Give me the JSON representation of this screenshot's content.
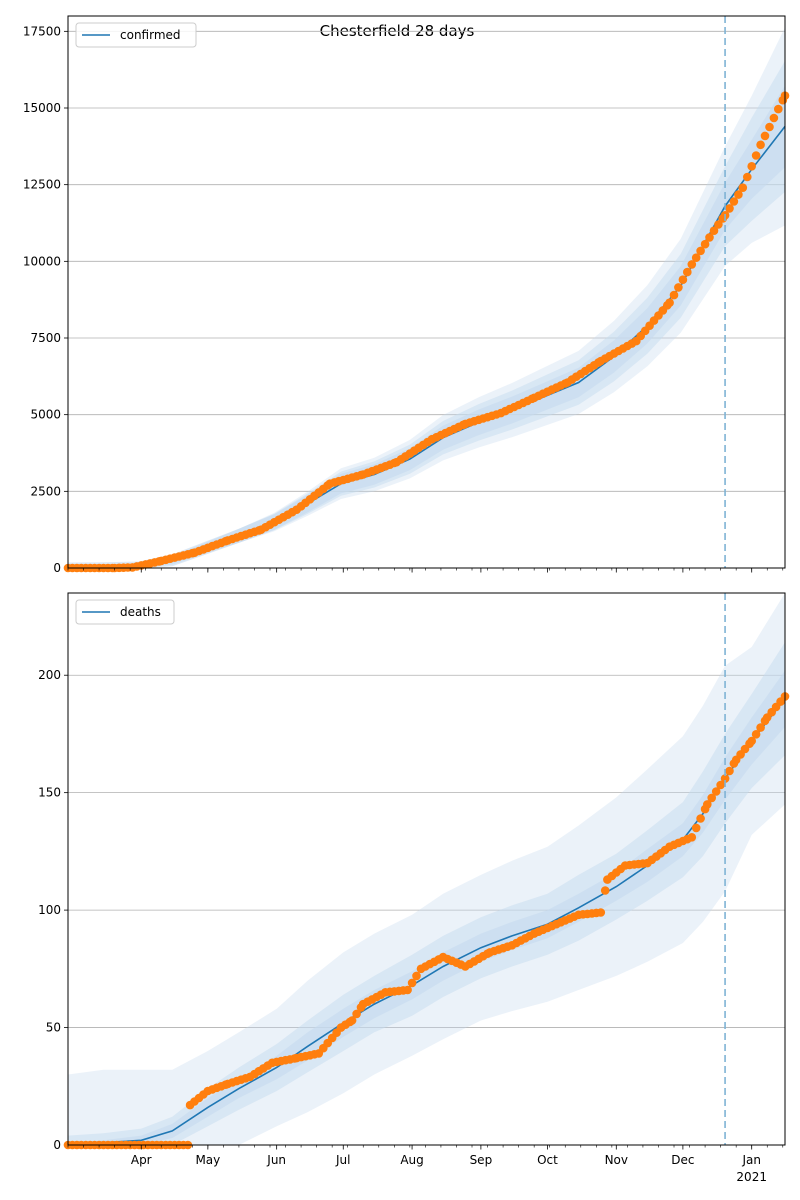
{
  "figure": {
    "title": "Chesterfield 28 days"
  },
  "chart_data": [
    {
      "type": "line",
      "panel": "top",
      "title": "Chesterfield 28 days",
      "legend": {
        "label": "confirmed",
        "placement": "top-left"
      },
      "xlim": [
        "2020-02-28",
        "2021-01-16"
      ],
      "ylim": [
        0,
        18000
      ],
      "yticks": [
        0,
        2500,
        5000,
        7500,
        10000,
        12500,
        15000,
        17500
      ],
      "grid": "y",
      "forecast_start": "2020-12-20",
      "model": {
        "color": "#1f77b4",
        "x": [
          "2020-02-28",
          "2020-03-15",
          "2020-03-31",
          "2020-04-15",
          "2020-04-30",
          "2020-05-15",
          "2020-05-31",
          "2020-06-15",
          "2020-06-30",
          "2020-07-15",
          "2020-07-31",
          "2020-08-15",
          "2020-08-31",
          "2020-09-15",
          "2020-09-30",
          "2020-10-15",
          "2020-10-31",
          "2020-11-15",
          "2020-11-30",
          "2020-12-10",
          "2020-12-20",
          "2021-01-01",
          "2021-01-16"
        ],
        "y": [
          0,
          5,
          30,
          250,
          650,
          1050,
          1500,
          2100,
          2750,
          3050,
          3550,
          4250,
          4750,
          5150,
          5600,
          6050,
          6900,
          7900,
          9200,
          10500,
          11800,
          13000,
          14400
        ],
        "band_inner": [
          0.05,
          0.05,
          0.05,
          0.05,
          0.05,
          0.05,
          0.05,
          0.05,
          0.05,
          0.05,
          0.05,
          0.05,
          0.05,
          0.05,
          0.05,
          0.05,
          0.05,
          0.05,
          0.05,
          0.05,
          0.05,
          0.06,
          0.08
        ],
        "band_mid": [
          0.1,
          0.1,
          0.1,
          0.1,
          0.1,
          0.1,
          0.1,
          0.1,
          0.1,
          0.1,
          0.1,
          0.1,
          0.1,
          0.1,
          0.1,
          0.1,
          0.1,
          0.1,
          0.1,
          0.1,
          0.1,
          0.12,
          0.14
        ],
        "band_outer": [
          0.16,
          0.16,
          0.16,
          0.16,
          0.16,
          0.16,
          0.16,
          0.16,
          0.16,
          0.16,
          0.16,
          0.16,
          0.16,
          0.16,
          0.16,
          0.16,
          0.16,
          0.16,
          0.16,
          0.16,
          0.16,
          0.18,
          0.22
        ]
      },
      "observed": {
        "color": "#ff7f0e",
        "x": [
          "2020-02-28",
          "2020-03-20",
          "2020-03-28",
          "2020-04-10",
          "2020-04-25",
          "2020-05-10",
          "2020-05-25",
          "2020-06-10",
          "2020-06-25",
          "2020-07-10",
          "2020-07-25",
          "2020-08-10",
          "2020-08-25",
          "2020-09-10",
          "2020-09-25",
          "2020-10-10",
          "2020-10-25",
          "2020-11-10",
          "2020-11-25",
          "2020-12-05",
          "2020-12-15",
          "2020-12-20",
          "2020-12-28",
          "2021-01-05",
          "2021-01-16"
        ],
        "y": [
          0,
          0,
          20,
          230,
          500,
          900,
          1250,
          1900,
          2750,
          3050,
          3450,
          4200,
          4700,
          5050,
          5550,
          6050,
          6750,
          7400,
          8650,
          9900,
          11000,
          11500,
          12400,
          13800,
          15400
        ]
      }
    },
    {
      "type": "line",
      "panel": "bottom",
      "legend": {
        "label": "deaths",
        "placement": "top-left"
      },
      "xlim": [
        "2020-02-28",
        "2021-01-16"
      ],
      "ylim": [
        0,
        235
      ],
      "yticks": [
        0,
        50,
        100,
        150,
        200
      ],
      "xticks": [
        {
          "date": "2020-04-01",
          "label": "Apr"
        },
        {
          "date": "2020-05-01",
          "label": "May"
        },
        {
          "date": "2020-06-01",
          "label": "Jun"
        },
        {
          "date": "2020-07-01",
          "label": "Jul"
        },
        {
          "date": "2020-08-01",
          "label": "Aug"
        },
        {
          "date": "2020-09-01",
          "label": "Sep"
        },
        {
          "date": "2020-10-01",
          "label": "Oct"
        },
        {
          "date": "2020-11-01",
          "label": "Nov"
        },
        {
          "date": "2020-12-01",
          "label": "Dec"
        },
        {
          "date": "2021-01-01",
          "label": "Jan",
          "sublabel": "2021"
        }
      ],
      "grid": "y",
      "forecast_start": "2020-12-20",
      "model": {
        "color": "#1f77b4",
        "x": [
          "2020-02-28",
          "2020-03-15",
          "2020-04-01",
          "2020-04-15",
          "2020-05-01",
          "2020-05-15",
          "2020-06-01",
          "2020-06-15",
          "2020-07-01",
          "2020-07-15",
          "2020-08-01",
          "2020-08-15",
          "2020-09-01",
          "2020-09-15",
          "2020-10-01",
          "2020-10-15",
          "2020-11-01",
          "2020-11-15",
          "2020-12-01",
          "2020-12-10",
          "2020-12-20",
          "2021-01-01",
          "2021-01-16"
        ],
        "y": [
          0,
          1,
          2,
          6,
          16,
          24,
          33,
          42,
          52,
          60,
          68,
          76,
          84,
          89,
          94,
          101,
          110,
          119,
          130,
          141,
          156,
          172,
          190
        ],
        "band_inner_abs": [
          1,
          1,
          2,
          3,
          4,
          4,
          5,
          6,
          6,
          6,
          6,
          6,
          6,
          6,
          6,
          6,
          6,
          7,
          7,
          8,
          9,
          10,
          12
        ],
        "band_mid_abs": [
          4,
          4,
          5,
          6,
          8,
          9,
          10,
          11,
          12,
          12,
          13,
          13,
          13,
          13,
          13,
          14,
          14,
          15,
          16,
          18,
          19,
          20,
          24
        ],
        "band_outer_abs": [
          30,
          31,
          30,
          26,
          24,
          24,
          25,
          28,
          30,
          30,
          30,
          31,
          31,
          32,
          33,
          35,
          38,
          41,
          44,
          46,
          48,
          40,
          45
        ]
      },
      "observed": {
        "color": "#ff7f0e",
        "x": [
          "2020-02-28",
          "2020-04-22",
          "2020-04-23",
          "2020-05-01",
          "2020-05-10",
          "2020-05-20",
          "2020-05-30",
          "2020-06-10",
          "2020-06-20",
          "2020-06-30",
          "2020-07-05",
          "2020-07-10",
          "2020-07-20",
          "2020-07-30",
          "2020-08-05",
          "2020-08-15",
          "2020-08-25",
          "2020-09-05",
          "2020-09-15",
          "2020-09-25",
          "2020-10-05",
          "2020-10-15",
          "2020-10-25",
          "2020-10-28",
          "2020-11-05",
          "2020-11-15",
          "2020-11-25",
          "2020-12-05",
          "2020-12-12",
          "2020-12-20",
          "2020-12-25",
          "2021-01-01",
          "2021-01-08",
          "2021-01-16"
        ],
        "y": [
          0,
          0,
          17,
          23,
          26,
          29,
          35,
          37,
          39,
          50,
          53,
          60,
          65,
          66,
          75,
          80,
          76,
          82,
          85,
          90,
          94,
          98,
          99,
          113,
          119,
          120,
          127,
          131,
          145,
          156,
          164,
          172,
          182,
          191
        ]
      }
    }
  ]
}
